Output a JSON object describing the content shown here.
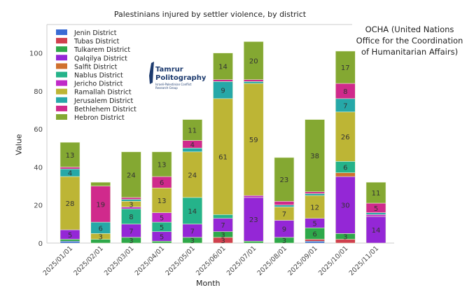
{
  "note": "OCHA (United Nations Office for the Coordination of Humanitarian Affairs)",
  "logo": {
    "line1": "Tamrur",
    "line2": "Politography",
    "line3": "Israeli-Palestinian Conflict Research Group"
  },
  "chart_data": {
    "type": "bar",
    "stacked": true,
    "title": "Palestinians injured by settler violence, by district",
    "xlabel": "Month",
    "ylabel": "Value",
    "ylim": [
      0,
      115
    ],
    "yticks": [
      0,
      20,
      40,
      60,
      80,
      100
    ],
    "legend": "top-left",
    "grid": false,
    "categories": [
      "2025/01/01",
      "2025/02/01",
      "2025/03/01",
      "2025/04/01",
      "2025/05/01",
      "2025/06/01",
      "2025/07/01",
      "2025/08/01",
      "2025/09/01",
      "2025/10/01",
      "2025/11/01"
    ],
    "series": [
      {
        "name": "Jenin District",
        "color": "#3a6bd4",
        "values": [
          1,
          0,
          0,
          0,
          0,
          0,
          0,
          0,
          1,
          0,
          0
        ]
      },
      {
        "name": "Tubas District",
        "color": "#d0404e",
        "values": [
          0,
          0,
          0,
          0,
          0,
          3,
          0,
          0,
          1,
          2,
          0
        ]
      },
      {
        "name": "Tulkarem District",
        "color": "#2ea84a",
        "values": [
          1,
          2,
          3,
          1,
          3,
          3,
          1,
          3,
          6,
          3,
          0
        ]
      },
      {
        "name": "Qalqilya District",
        "color": "#9427d6",
        "values": [
          5,
          0,
          7,
          5,
          7,
          7,
          23,
          9,
          5,
          30,
          14
        ]
      },
      {
        "name": "Salfit District",
        "color": "#d0702e",
        "values": [
          0,
          0,
          0,
          0,
          0,
          0,
          0,
          0,
          0,
          2,
          0
        ]
      },
      {
        "name": "Nablus District",
        "color": "#25b38a",
        "values": [
          0,
          0,
          8,
          5,
          14,
          2,
          0,
          0,
          0,
          6,
          0
        ]
      },
      {
        "name": "Jericho District",
        "color": "#c02ac8",
        "values": [
          0,
          0,
          1,
          5,
          0,
          0,
          1,
          0,
          0,
          0,
          1
        ]
      },
      {
        "name": "Ramallah District",
        "color": "#bdb535",
        "values": [
          28,
          3,
          3,
          13,
          24,
          61,
          59,
          7,
          12,
          26,
          0
        ]
      },
      {
        "name": "Jerusalem District",
        "color": "#26a8a8",
        "values": [
          4,
          6,
          1,
          0,
          2,
          9,
          1,
          1,
          1,
          7,
          1
        ]
      },
      {
        "name": "Bethlehem District",
        "color": "#d02a8c",
        "values": [
          1,
          19,
          1,
          6,
          4,
          1,
          1,
          2,
          1,
          8,
          5
        ]
      },
      {
        "name": "Hebron District",
        "color": "#84a832",
        "values": [
          13,
          2,
          24,
          13,
          11,
          14,
          20,
          23,
          38,
          17,
          11
        ]
      }
    ]
  }
}
